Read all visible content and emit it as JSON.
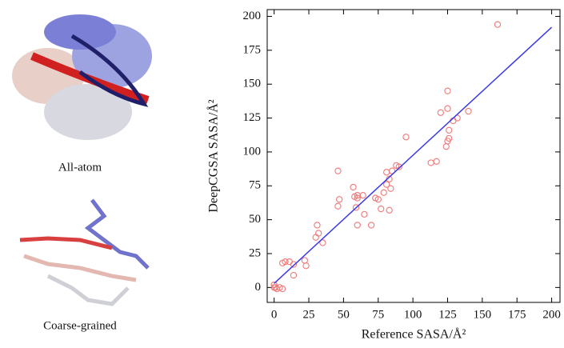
{
  "panels": [
    {
      "label": "All-atom"
    },
    {
      "label": "Coarse-grained"
    }
  ],
  "chart_data": {
    "type": "scatter",
    "x_label": "Reference SASA/Å²",
    "y_label": "DeepCGSA SASA/Å²",
    "x": [
      161,
      125,
      140,
      125,
      120,
      132,
      129,
      126,
      126,
      125,
      124,
      95,
      117,
      113,
      88,
      90,
      81,
      85,
      46,
      83,
      81,
      79,
      84,
      57,
      60,
      60,
      58,
      64,
      73,
      75,
      47,
      46,
      59,
      77,
      83,
      65,
      60,
      70,
      31,
      32,
      30,
      35,
      22,
      23,
      8,
      11,
      6,
      14,
      14,
      0,
      1,
      2,
      4,
      6,
      0
    ],
    "y": [
      194,
      145,
      130,
      132,
      129,
      125,
      123,
      116,
      110,
      108,
      104,
      111,
      93,
      92,
      90,
      89,
      85,
      86,
      86,
      80,
      76,
      70,
      73,
      74,
      68,
      66,
      67,
      68,
      66,
      65,
      65,
      60,
      59,
      58,
      57,
      54,
      46,
      46,
      46,
      40,
      37,
      33,
      20,
      16,
      19,
      19,
      18,
      17,
      9,
      2,
      0,
      -1,
      0,
      -1,
      0
    ],
    "color": "#f07878",
    "fit_line": {
      "x": [
        0,
        200
      ],
      "y": [
        3,
        192
      ],
      "color": "#3a3ae8"
    },
    "xlim": [
      -5,
      206
    ],
    "ylim": [
      -11,
      205
    ],
    "xticks": [
      0,
      25,
      50,
      75,
      100,
      125,
      150,
      175,
      200
    ],
    "yticks": [
      0,
      25,
      50,
      75,
      100,
      125,
      150,
      175,
      200
    ]
  }
}
